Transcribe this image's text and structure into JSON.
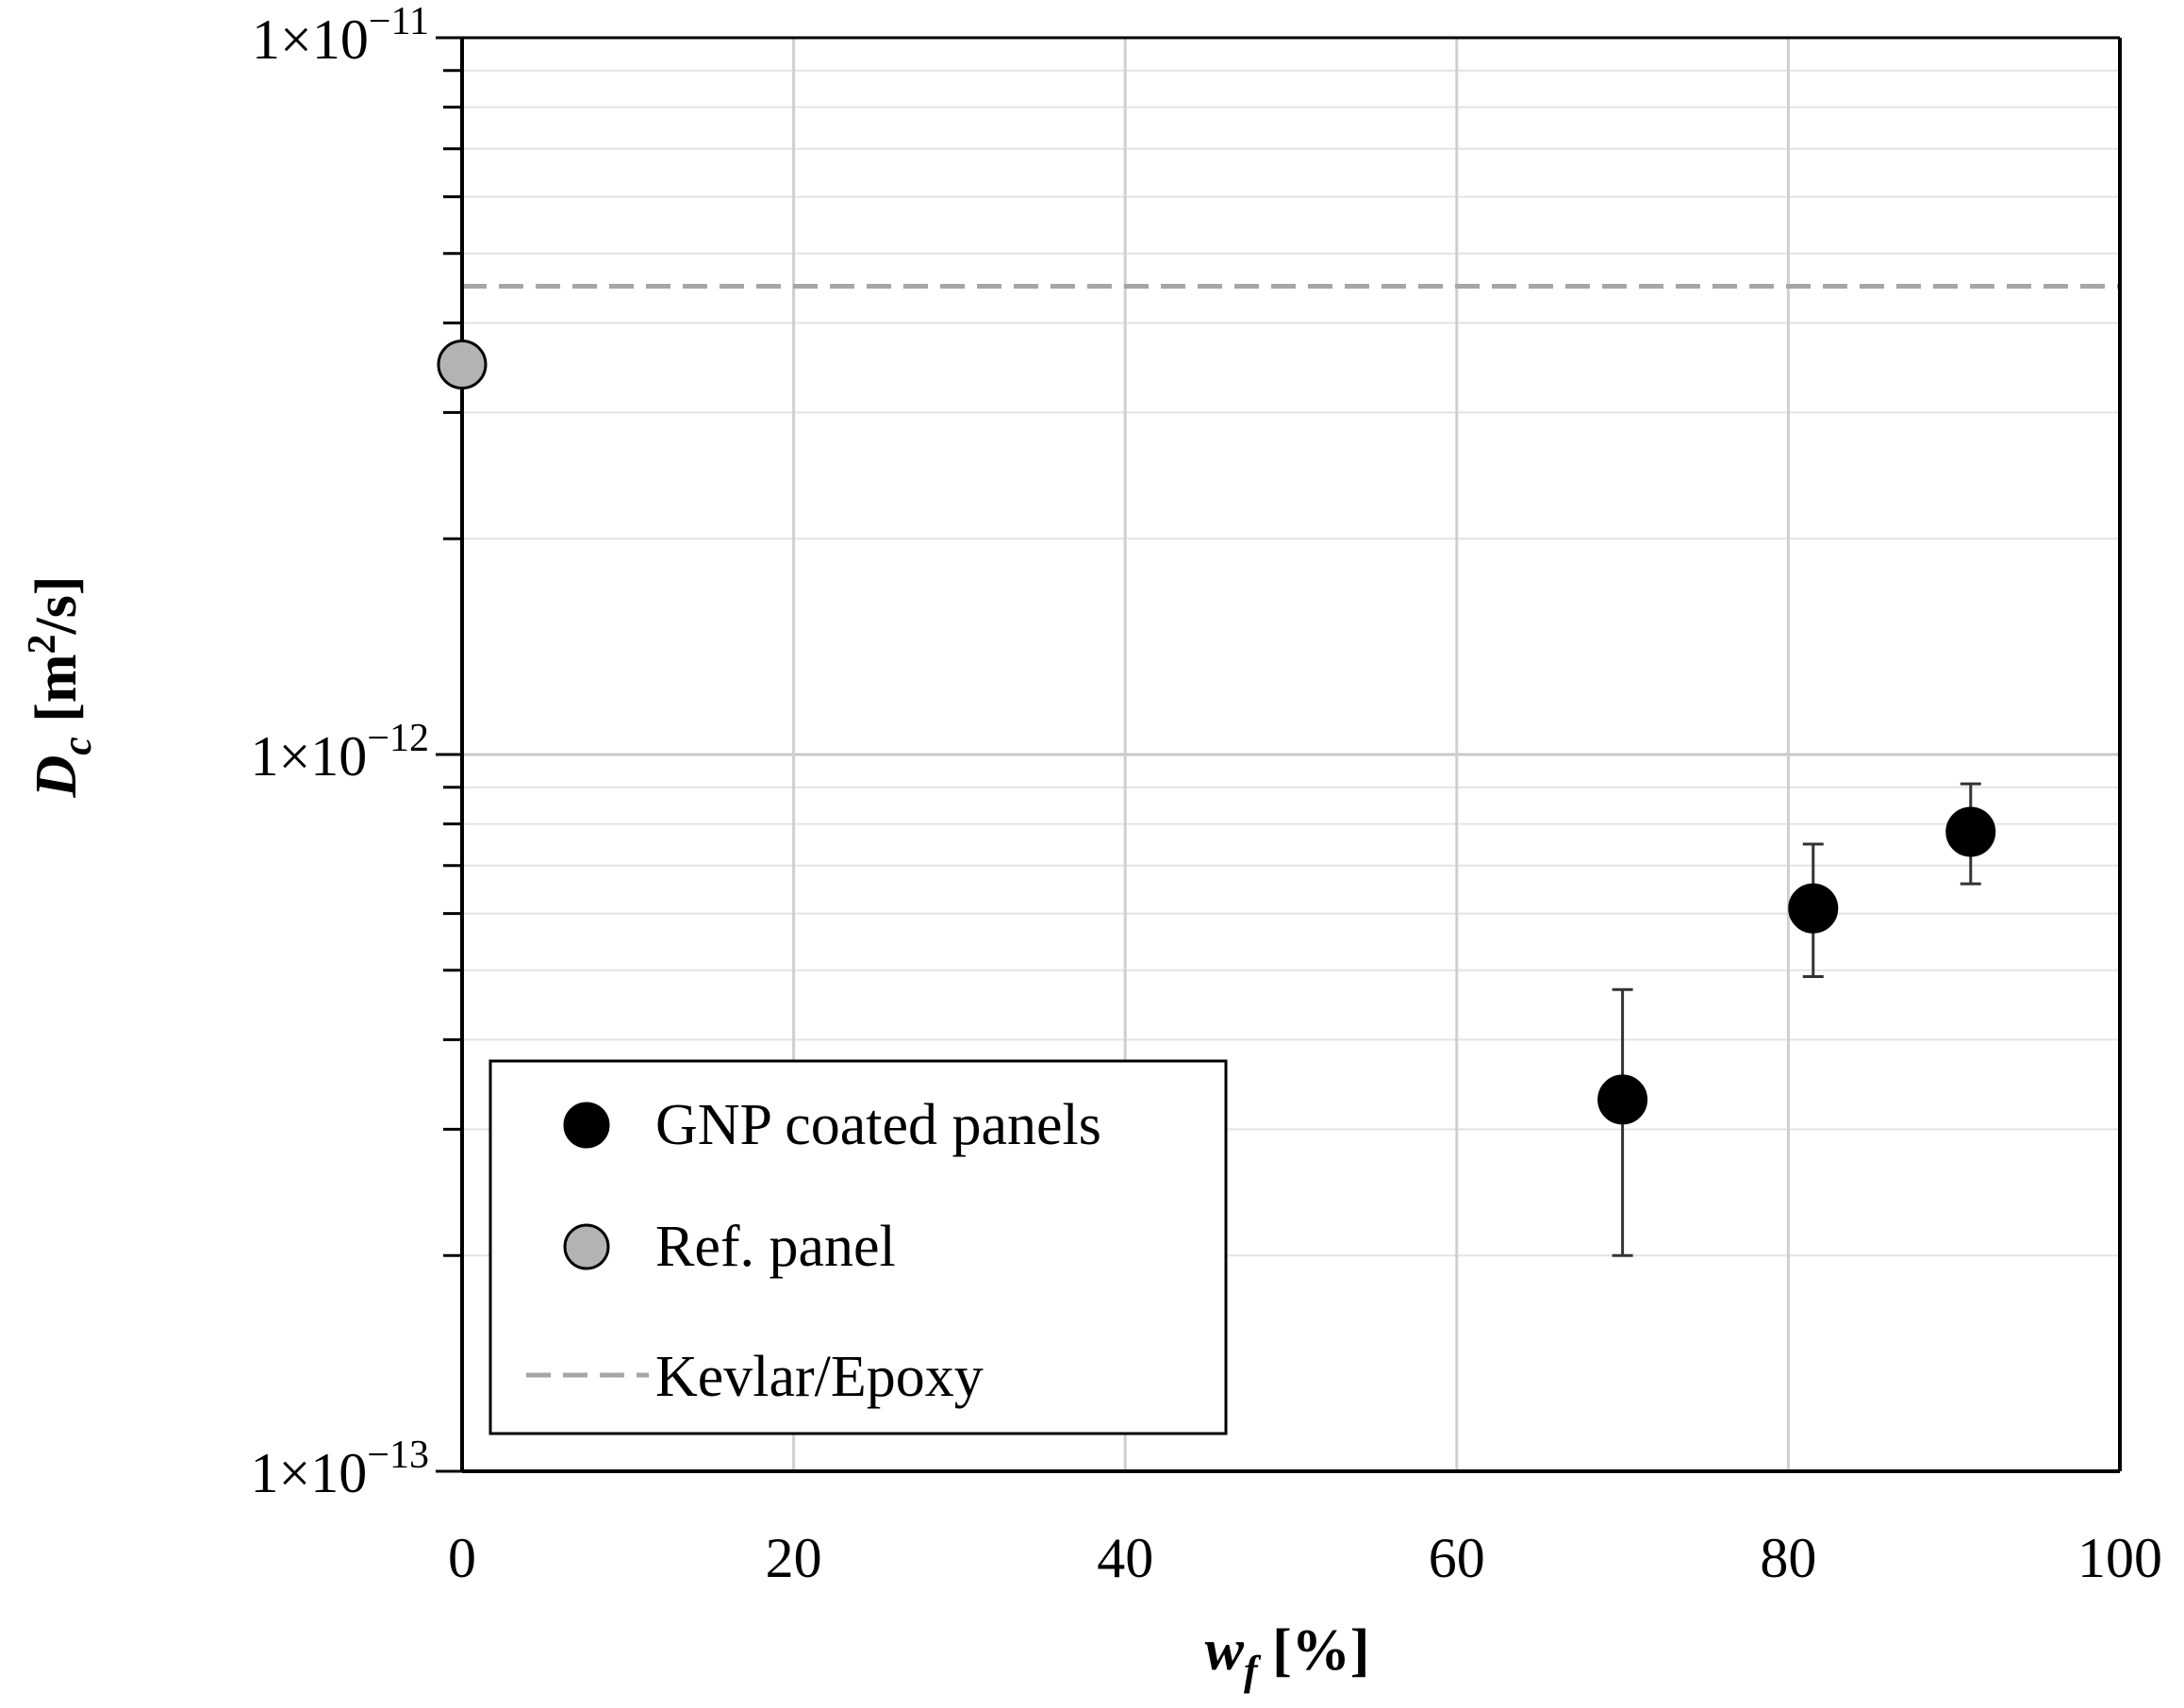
{
  "chart_data": {
    "type": "scatter",
    "xlabel": {
      "main": "w",
      "sub": "f",
      "unit": " [%]"
    },
    "ylabel": {
      "main": "D",
      "sub": "c",
      "unit_pre": " [m",
      "unit_sup": "2",
      "unit_post": "/s]"
    },
    "xlim": [
      0,
      100
    ],
    "ylim": [
      1e-13,
      1e-11
    ],
    "yscale": "log",
    "grid": true,
    "x_ticks": [
      "0",
      "20",
      "40",
      "60",
      "80",
      "100"
    ],
    "y_ticks": [
      {
        "mantissa": "1×10",
        "exponent": "−11"
      },
      {
        "mantissa": "1×10",
        "exponent": "−12"
      },
      {
        "mantissa": "1×10",
        "exponent": "−13"
      }
    ],
    "series": [
      {
        "name": "GNP coated panels",
        "color": "#000000",
        "points": [
          {
            "x": 70.0,
            "y": 3.3e-13,
            "ylow": 2e-13,
            "yhigh": 4.7e-13
          },
          {
            "x": 81.5,
            "y": 6.1e-13,
            "ylow": 4.9e-13,
            "yhigh": 7.5e-13
          },
          {
            "x": 91.0,
            "y": 7.8e-13,
            "ylow": 6.6e-13,
            "yhigh": 9.1e-13
          }
        ]
      },
      {
        "name": "Ref. panel",
        "color": "#b3b3b3",
        "points": [
          {
            "x": 0.0,
            "y": 3.5e-12
          }
        ]
      },
      {
        "name": "Kevlar/Epoxy",
        "color": "#a6a6a6",
        "style": "dashed",
        "y_const": 4.5e-12
      }
    ],
    "legend_position": "bottom-left"
  }
}
